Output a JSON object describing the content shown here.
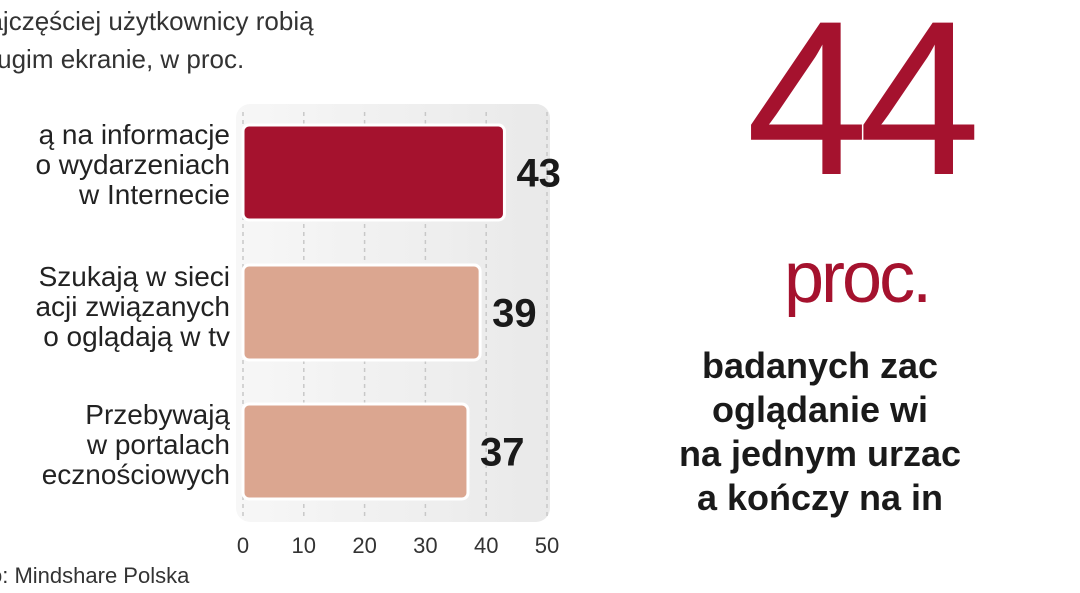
{
  "subtitle_lines": [
    "najczęściej użytkownicy robią",
    "drugim ekranie, w proc."
  ],
  "categories": [
    {
      "lines": [
        "ą na informacje",
        "o wydarzeniach",
        "w Internecie"
      ]
    },
    {
      "lines": [
        "Szukają w sieci",
        "acji związanych",
        "o oglądają w tv"
      ]
    },
    {
      "lines": [
        "Przebywają",
        "w portalach",
        "ecznościowych"
      ]
    }
  ],
  "source": "o: Mindshare Polska",
  "highlight": {
    "number": "44",
    "unit": "proc.",
    "text_lines": [
      "badanych zac",
      "oglądanie wi",
      "na jednym urzac",
      "a kończy na in"
    ]
  },
  "chart_data": {
    "type": "bar",
    "orientation": "horizontal",
    "categories": [
      "ą na informacje o wydarzeniach w Internecie",
      "Szukają w sieci acji związanych o oglądają w tv",
      "Przebywają w portalach ecznościowych"
    ],
    "values": [
      43,
      39,
      37
    ],
    "value_labels": [
      "43",
      "39",
      "37"
    ],
    "xlim": [
      0,
      50
    ],
    "xticks": [
      0,
      10,
      20,
      30,
      40,
      50
    ],
    "colors": [
      "#a5122e",
      "#dba690",
      "#dba690"
    ],
    "grid": true
  }
}
